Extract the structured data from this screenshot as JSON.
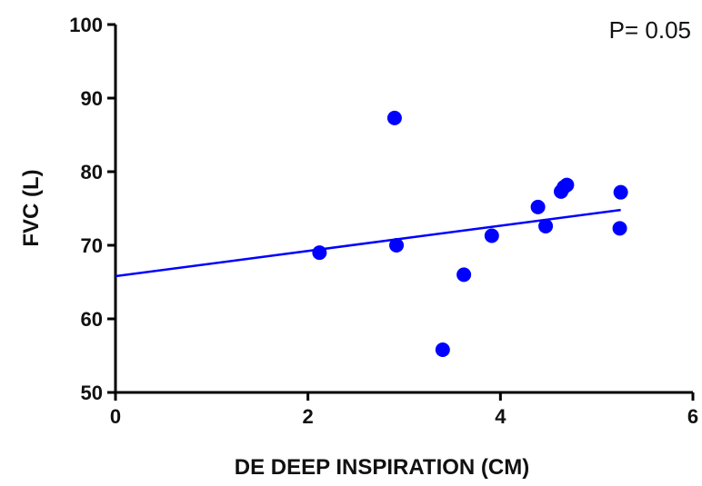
{
  "chart_data": {
    "type": "scatter",
    "title": "",
    "xlabel": "DE DEEP INSPIRATION (CM)",
    "ylabel": "FVC (L)",
    "xlim": [
      0,
      6
    ],
    "ylim": [
      50,
      100
    ],
    "x_ticks": [
      0,
      2,
      4,
      6
    ],
    "y_ticks": [
      50,
      60,
      70,
      80,
      90,
      100
    ],
    "grid": false,
    "legend": "none",
    "annotation": "P= 0.05",
    "point_color": "#0000ff",
    "series": [
      {
        "x": [
          2.12,
          2.9,
          2.92,
          3.4,
          3.62,
          3.91,
          4.39,
          4.47,
          4.63,
          4.66,
          4.69,
          5.24,
          5.25
        ],
        "y": [
          69.0,
          87.3,
          70.0,
          55.8,
          66.0,
          71.3,
          75.2,
          72.6,
          77.3,
          77.9,
          78.2,
          72.3,
          77.2
        ]
      }
    ],
    "trendline": {
      "x": [
        0,
        5.25
      ],
      "y": [
        65.8,
        74.8
      ],
      "color": "#0000ff"
    }
  }
}
